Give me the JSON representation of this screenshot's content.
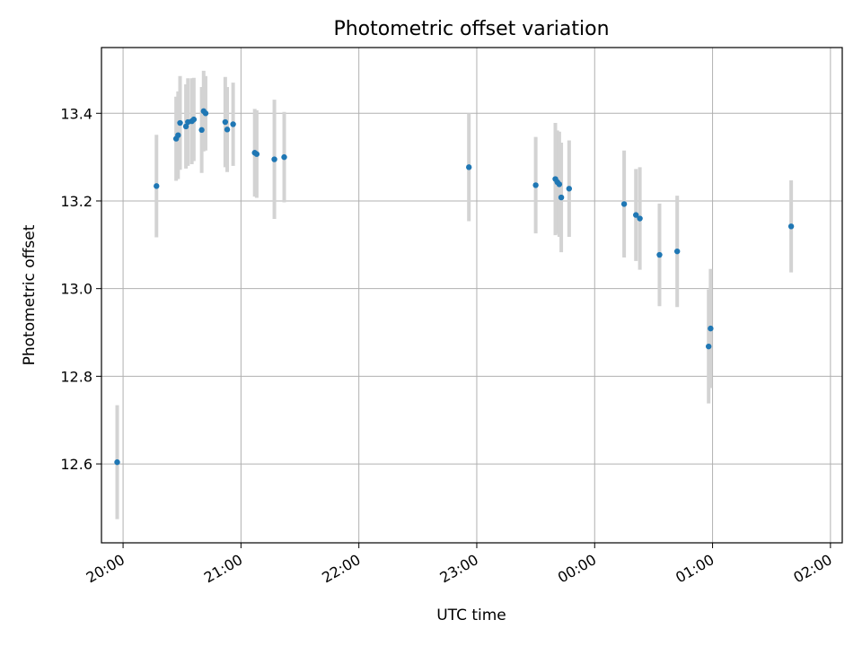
{
  "chart_data": {
    "type": "scatter",
    "title": "Photometric offset variation",
    "xlabel": "UTC time",
    "ylabel": "Photometric offset",
    "grid": true,
    "xlim": [
      "19:49",
      "02:06"
    ],
    "ylim": [
      12.42,
      13.55
    ],
    "x_ticks": [
      "20:00",
      "21:00",
      "22:00",
      "23:00",
      "00:00",
      "01:00",
      "02:00"
    ],
    "y_ticks": [
      12.6,
      12.8,
      13.0,
      13.2,
      13.4
    ],
    "colors": {
      "points": "#1f77b4",
      "errorbars": "#d3d3d3",
      "grid": "#b0b0b0"
    },
    "points": [
      {
        "x": "19:57",
        "y": 12.604,
        "err": 0.13
      },
      {
        "x": "20:17",
        "y": 13.234,
        "err": 0.117
      },
      {
        "x": "20:27",
        "y": 13.342,
        "err": 0.096
      },
      {
        "x": "20:28",
        "y": 13.35,
        "err": 0.1
      },
      {
        "x": "20:29",
        "y": 13.378,
        "err": 0.107
      },
      {
        "x": "20:32",
        "y": 13.37,
        "err": 0.096
      },
      {
        "x": "20:33",
        "y": 13.38,
        "err": 0.1
      },
      {
        "x": "20:35",
        "y": 13.382,
        "err": 0.098
      },
      {
        "x": "20:36",
        "y": 13.386,
        "err": 0.095
      },
      {
        "x": "20:40",
        "y": 13.362,
        "err": 0.098
      },
      {
        "x": "20:41",
        "y": 13.405,
        "err": 0.092
      },
      {
        "x": "20:42",
        "y": 13.4,
        "err": 0.085
      },
      {
        "x": "20:52",
        "y": 13.38,
        "err": 0.103
      },
      {
        "x": "20:53",
        "y": 13.363,
        "err": 0.097
      },
      {
        "x": "20:56",
        "y": 13.375,
        "err": 0.095
      },
      {
        "x": "21:07",
        "y": 13.31,
        "err": 0.1
      },
      {
        "x": "21:08",
        "y": 13.307,
        "err": 0.1
      },
      {
        "x": "21:17",
        "y": 13.295,
        "err": 0.136
      },
      {
        "x": "21:22",
        "y": 13.3,
        "err": 0.103
      },
      {
        "x": "22:56",
        "y": 13.277,
        "err": 0.123
      },
      {
        "x": "23:30",
        "y": 13.236,
        "err": 0.11
      },
      {
        "x": "23:40",
        "y": 13.25,
        "err": 0.128
      },
      {
        "x": "23:41",
        "y": 13.243,
        "err": 0.118
      },
      {
        "x": "23:42",
        "y": 13.238,
        "err": 0.12
      },
      {
        "x": "23:43",
        "y": 13.208,
        "err": 0.125
      },
      {
        "x": "23:47",
        "y": 13.228,
        "err": 0.11
      },
      {
        "x": "00:15",
        "y": 13.193,
        "err": 0.122
      },
      {
        "x": "00:21",
        "y": 13.168,
        "err": 0.105
      },
      {
        "x": "00:23",
        "y": 13.16,
        "err": 0.117
      },
      {
        "x": "00:33",
        "y": 13.077,
        "err": 0.117
      },
      {
        "x": "00:42",
        "y": 13.085,
        "err": 0.127
      },
      {
        "x": "00:58",
        "y": 12.868,
        "err": 0.13
      },
      {
        "x": "00:59",
        "y": 12.909,
        "err": 0.136
      },
      {
        "x": "01:40",
        "y": 13.142,
        "err": 0.105
      }
    ]
  }
}
